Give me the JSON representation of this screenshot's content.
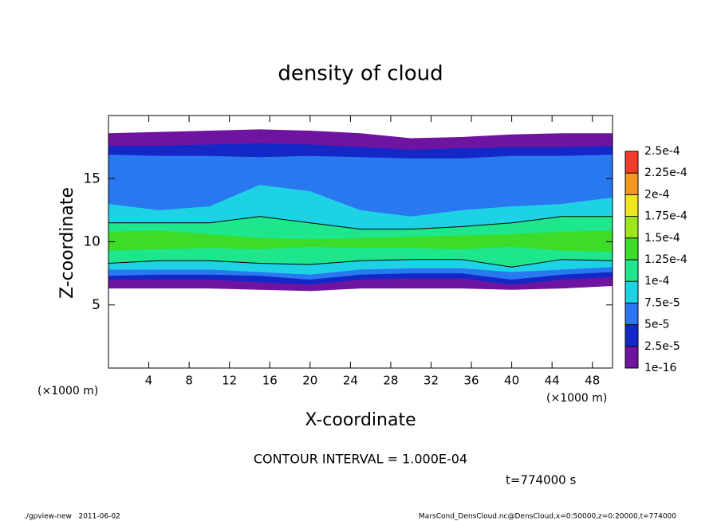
{
  "chart_data": {
    "type": "contour",
    "title": "density of cloud",
    "x_label": "X-coordinate",
    "y_label": "Z-coordinate",
    "x_unit": "(×1000 m)",
    "y_unit": "(×1000 m)",
    "contour_note": "CONTOUR INTERVAL = 1.000E-04",
    "time_note": "t=774000 s",
    "footer_left": "./gpview-new   2011-06-02",
    "footer_right": "MarsCond_DensCloud.nc@DensCloud,x=0:50000,z=0:20000,t=774000",
    "xlim": [
      0,
      50
    ],
    "ylim": [
      0,
      20
    ],
    "xticks": [
      4,
      8,
      12,
      16,
      20,
      24,
      28,
      32,
      36,
      40,
      44,
      48
    ],
    "yticks": [
      5,
      10,
      15
    ],
    "x": [
      0,
      5,
      10,
      15,
      20,
      25,
      30,
      35,
      40,
      45,
      50
    ],
    "contour_level": 0.0001,
    "layers": [
      {
        "level": 1e-16,
        "top": [
          18.6,
          18.7,
          18.8,
          18.9,
          18.8,
          18.6,
          18.2,
          18.3,
          18.5,
          18.6,
          18.6
        ],
        "bottom": [
          6.3,
          6.3,
          6.3,
          6.2,
          6.1,
          6.3,
          6.3,
          6.3,
          6.2,
          6.3,
          6.5
        ]
      },
      {
        "level": 2.5e-05,
        "top": [
          17.6,
          17.6,
          17.7,
          17.8,
          17.7,
          17.5,
          17.3,
          17.4,
          17.5,
          17.5,
          17.6
        ],
        "bottom": [
          7.0,
          7.0,
          7.0,
          6.8,
          6.6,
          7.0,
          7.1,
          7.1,
          6.6,
          7.0,
          7.2
        ]
      },
      {
        "level": 5e-05,
        "top": [
          16.9,
          16.8,
          16.8,
          16.7,
          16.8,
          16.7,
          16.6,
          16.6,
          16.8,
          16.8,
          16.9
        ],
        "bottom": [
          7.3,
          7.4,
          7.4,
          7.3,
          7.0,
          7.4,
          7.5,
          7.5,
          7.0,
          7.4,
          7.6
        ]
      },
      {
        "level": 7.5e-05,
        "top": [
          13.0,
          12.5,
          12.8,
          14.5,
          14.0,
          12.5,
          12.0,
          12.5,
          12.8,
          13.0,
          13.5
        ],
        "bottom": [
          7.8,
          7.8,
          7.8,
          7.6,
          7.4,
          7.8,
          7.9,
          7.9,
          7.6,
          7.8,
          8.0
        ]
      },
      {
        "level": 0.0001,
        "top": [
          11.5,
          11.5,
          11.5,
          12.0,
          11.5,
          11.0,
          11.0,
          11.2,
          11.5,
          12.0,
          12.0
        ],
        "bottom": [
          8.3,
          8.5,
          8.5,
          8.3,
          8.2,
          8.5,
          8.6,
          8.6,
          8.0,
          8.6,
          8.5
        ]
      },
      {
        "level": 0.000125,
        "top": [
          10.8,
          10.9,
          10.6,
          10.3,
          10.2,
          10.3,
          10.4,
          10.5,
          10.6,
          10.8,
          10.9
        ],
        "bottom": [
          9.3,
          9.4,
          9.5,
          9.4,
          9.6,
          9.5,
          9.5,
          9.4,
          9.6,
          9.3,
          9.2
        ]
      }
    ],
    "colorbar": {
      "levels": [
        {
          "value": 1e-16,
          "label": "1e-16"
        },
        {
          "value": 2.5e-05,
          "label": "2.5e-5"
        },
        {
          "value": 5e-05,
          "label": "5e-5"
        },
        {
          "value": 7.5e-05,
          "label": "7.5e-5"
        },
        {
          "value": 0.0001,
          "label": "1e-4"
        },
        {
          "value": 0.000125,
          "label": "1.25e-4"
        },
        {
          "value": 0.00015,
          "label": "1.5e-4"
        },
        {
          "value": 0.000175,
          "label": "1.75e-4"
        },
        {
          "value": 0.0002,
          "label": "2e-4"
        },
        {
          "value": 0.000225,
          "label": "2.25e-4"
        },
        {
          "value": 0.00025,
          "label": "2.5e-4"
        }
      ],
      "colors": [
        "#6e14a0",
        "#1428c8",
        "#2a78f0",
        "#1ed2e6",
        "#1ee68c",
        "#3cdc28",
        "#a0e61e",
        "#f0e61e",
        "#f5961e",
        "#f03c28",
        "#f59a9a"
      ]
    }
  }
}
